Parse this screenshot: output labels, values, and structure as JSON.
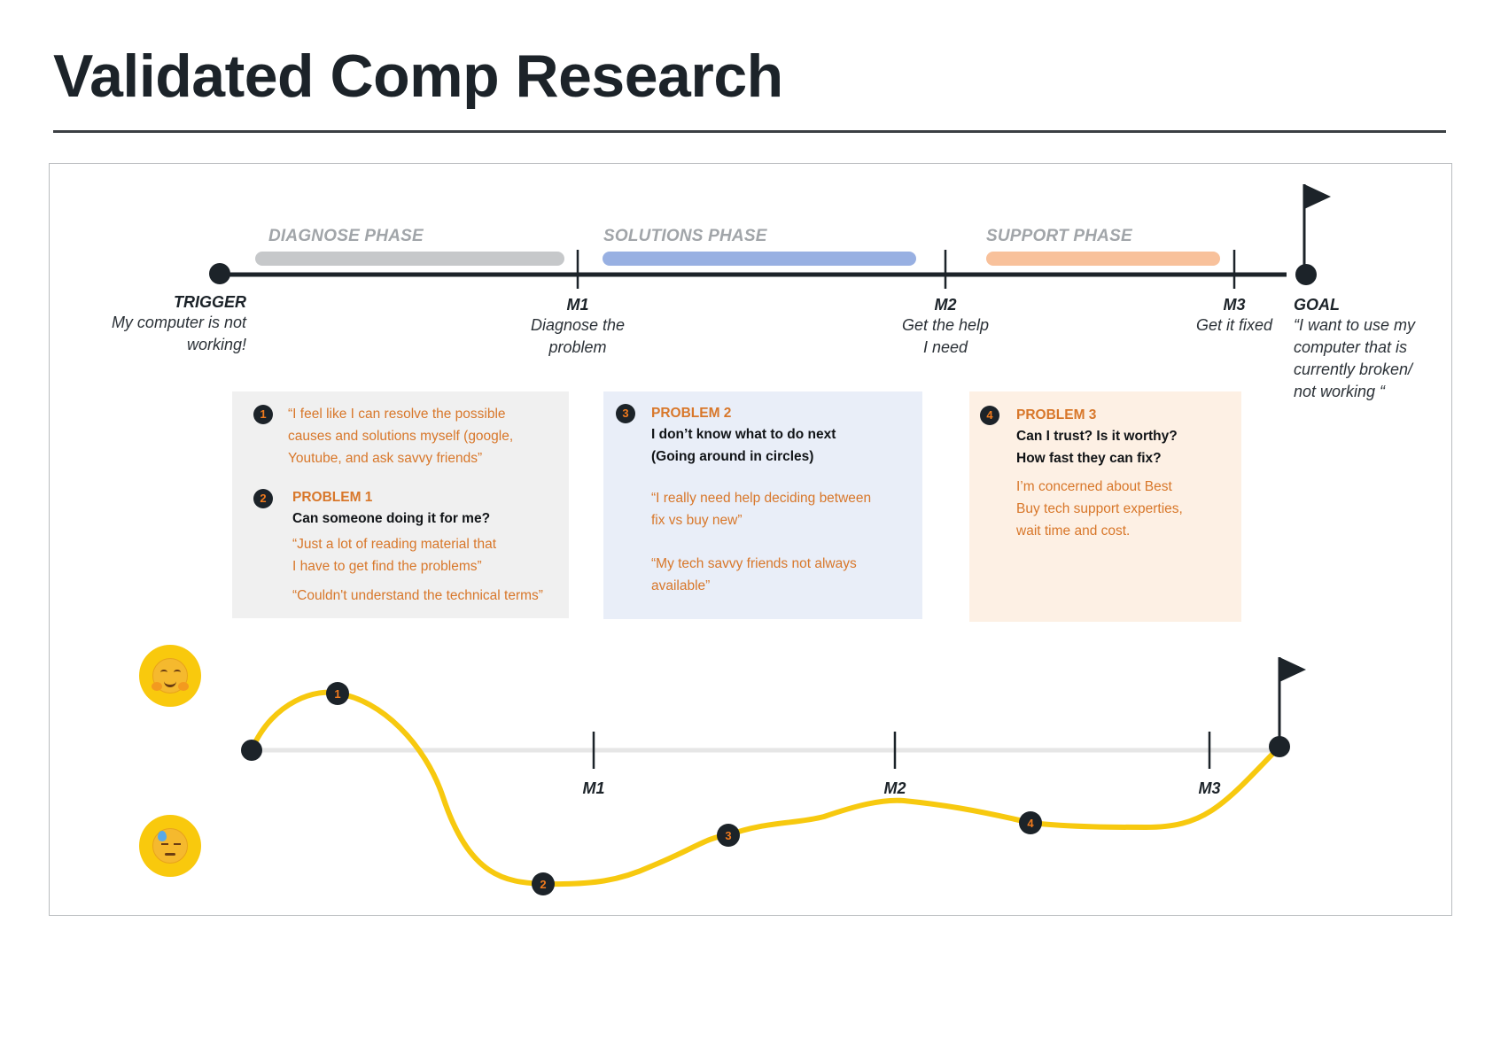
{
  "title": "Validated Comp Research",
  "colors": {
    "phase_diagnose": "#c6c8ca",
    "phase_solutions": "#98b0e2",
    "phase_support": "#f8c19b",
    "emotion_curve": "#f7c90f",
    "accent_orange": "#d8772a"
  },
  "phases": [
    {
      "label": "DIAGNOSE PHASE"
    },
    {
      "label": "SOLUTIONS PHASE"
    },
    {
      "label": "SUPPORT PHASE"
    }
  ],
  "trigger": {
    "head": "TRIGGER",
    "line1": "My computer is not",
    "line2": "working!"
  },
  "milestones": [
    {
      "head": "M1",
      "line1": "Diagnose the",
      "line2": "problem"
    },
    {
      "head": "M2",
      "line1": "Get the help",
      "line2": "I need"
    },
    {
      "head": "M3",
      "line1": "Get it fixed",
      "line2": ""
    }
  ],
  "goal": {
    "head": "GOAL",
    "lines": [
      "“I want to use my",
      "computer that is",
      "currently broken/",
      "not working “"
    ]
  },
  "cards": {
    "diagnose": {
      "item1": {
        "num": "1",
        "quote_lines": [
          "“I feel like I can resolve the possible",
          "causes and solutions myself (google,",
          "Youtube, and ask savvy friends”"
        ]
      },
      "item2": {
        "num": "2",
        "head": "PROBLEM 1",
        "question": "Can someone doing it for me?",
        "quote_lines": [
          "“Just a lot of reading material that",
          "I have to get find the problems”"
        ],
        "quote2": "“Couldn't understand the technical terms”"
      }
    },
    "solutions": {
      "num": "3",
      "head": "PROBLEM 2",
      "question_lines": [
        "I don’t know what to do next",
        "(Going around in circles)"
      ],
      "quote1_lines": [
        "“I really need help deciding between",
        "fix vs buy new”"
      ],
      "quote2_lines": [
        "“My tech savvy friends not always",
        "available”"
      ]
    },
    "support": {
      "num": "4",
      "head": "PROBLEM 3",
      "question_lines": [
        "Can I trust?  Is it worthy?",
        "How fast they can fix?"
      ],
      "quote_lines": [
        "I’m concerned about Best",
        "Buy tech support experties,",
        "wait time and cost."
      ]
    }
  },
  "emotion_curve": {
    "icons": [
      "happy-hug-icon",
      "sad-sweat-icon"
    ],
    "milestone_labels": [
      "M1",
      "M2",
      "M3"
    ],
    "markers": [
      "1",
      "2",
      "3",
      "4"
    ]
  }
}
